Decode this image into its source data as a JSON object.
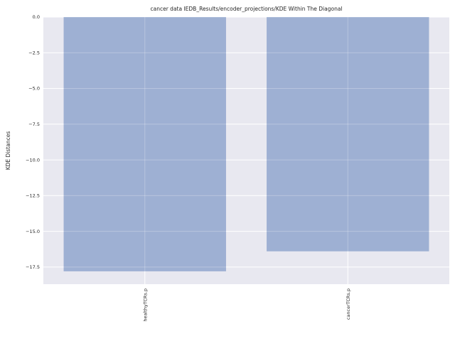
{
  "chart_data": {
    "type": "bar",
    "title": "cancer data IEDB_Results/encoder_projections/KDE Within The Diagonal",
    "xlabel": "",
    "ylabel": "KDE Distances",
    "categories": [
      "healthyTCRs.p",
      "cancerTCRs.p"
    ],
    "values": [
      -17.8,
      -16.4
    ],
    "ylim": [
      -18.7,
      0.0
    ],
    "yticks": [
      0.0,
      -2.5,
      -5.0,
      -7.5,
      -10.0,
      -12.5,
      -15.0,
      -17.5
    ],
    "ytick_labels": [
      "0.0",
      "−2.5",
      "−5.0",
      "−7.5",
      "−10.0",
      "−12.5",
      "−15.0",
      "−17.5"
    ],
    "grid": true,
    "colors": {
      "bar": "#9aadd1",
      "background": "#e8e8f0",
      "grid": "#ffffff"
    }
  }
}
